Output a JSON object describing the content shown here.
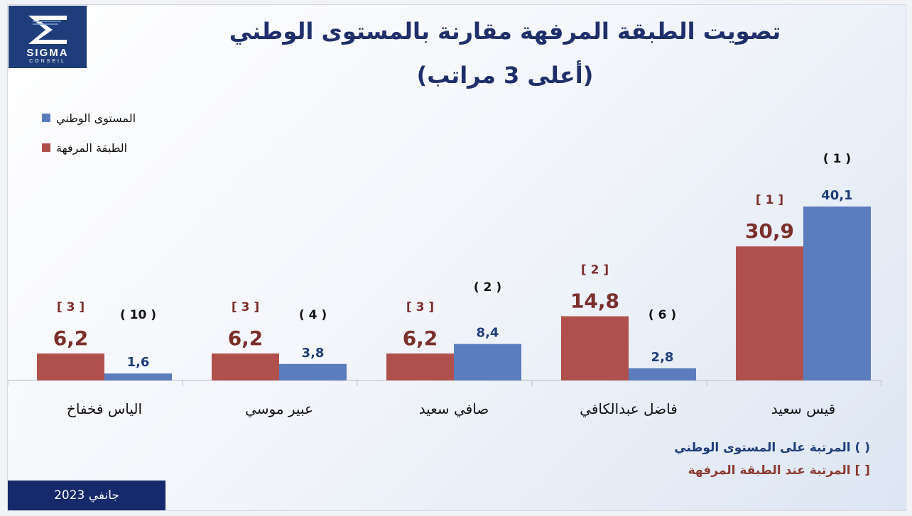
{
  "logo": {
    "word": "SIGMA",
    "sub": "CONSEIL"
  },
  "title": {
    "line1": "تصويت الطبقة المرفهة مقارنة بالمستوى الوطني",
    "line2": "(أعلى 3  مراتب)"
  },
  "legend": {
    "national": "المستوى الوطني",
    "affluent": "الطبقة المرفهة"
  },
  "notes": {
    "national_rank": "( ) المرتبة على المستوى الوطني",
    "affluent_rank": "[ ] المرتبة عند الطبقة المرفهة"
  },
  "footer": {
    "date": "جانفي 2023"
  },
  "colors": {
    "affluent": "#b0504c",
    "national": "#5b7dbd",
    "affluent_label": "#7a2f2a",
    "national_label": "#1f3d7a",
    "title": "#1f2f6b"
  },
  "chart_data": {
    "type": "bar",
    "categories": [
      "الياس فخفاخ",
      "عبير موسي",
      "صافي سعيد",
      "فاضل عبدالكافي",
      "قيس سعيد"
    ],
    "series": [
      {
        "name": "الطبقة المرفهة",
        "values": [
          6.2,
          6.2,
          6.2,
          14.8,
          30.9
        ],
        "labels": [
          "6,2",
          "6,2",
          "6,2",
          "14,8",
          "30,9"
        ],
        "ranks": [
          "[ 3 ]",
          "[ 3 ]",
          "[ 3 ]",
          "[ 2 ]",
          "[ 1 ]"
        ]
      },
      {
        "name": "المستوى الوطني",
        "values": [
          1.6,
          3.8,
          8.4,
          2.8,
          40.1
        ],
        "labels": [
          "1,6",
          "3,8",
          "8,4",
          "2,8",
          "40,1"
        ],
        "ranks": [
          "( 10 )",
          "( 4 )",
          "( 2 )",
          "( 6 )",
          "( 1 )"
        ]
      }
    ],
    "ylim": [
      0,
      45
    ],
    "grid": false,
    "legend_position": "top-left"
  }
}
